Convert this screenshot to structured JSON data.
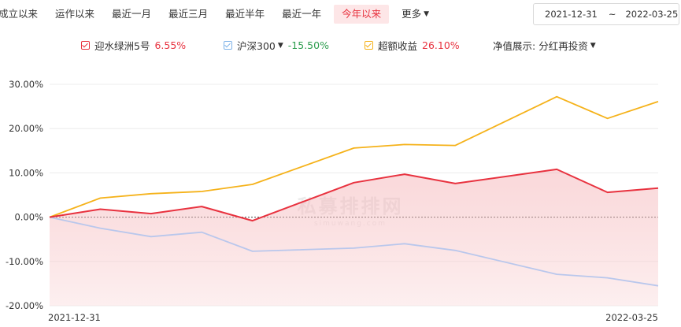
{
  "tabs": [
    {
      "label": "成立以来",
      "active": false
    },
    {
      "label": "运作以来",
      "active": false
    },
    {
      "label": "最近一月",
      "active": false
    },
    {
      "label": "最近三月",
      "active": false
    },
    {
      "label": "最近半年",
      "active": false
    },
    {
      "label": "最近一年",
      "active": false
    },
    {
      "label": "今年以来",
      "active": true
    },
    {
      "label": "更多",
      "active": false
    }
  ],
  "date_range": {
    "start": "2021-12-31",
    "sep": "~",
    "end": "2022-03-25"
  },
  "legend": [
    {
      "name": "迎水绿洲5号",
      "value": "6.55%",
      "color": "#e8323f",
      "value_color": "#e8323f",
      "dropdown": false
    },
    {
      "name": "沪深300",
      "value": "-15.50%",
      "color": "#7fb3e8",
      "value_color": "#2e9e4f",
      "dropdown": true
    },
    {
      "name": "超额收益",
      "value": "26.10%",
      "color": "#f5b21a",
      "value_color": "#e8323f",
      "dropdown": false
    }
  ],
  "nav_display": {
    "label": "净值展示:",
    "value": "分红再投资"
  },
  "watermark": {
    "main": "私募排排网",
    "sub": "simuwang.com"
  },
  "chart_data": {
    "type": "line",
    "x": [
      "2021-12-31",
      "2022-01-07",
      "2022-01-14",
      "2022-01-21",
      "2022-01-28",
      "2022-02-11",
      "2022-02-18",
      "2022-02-25",
      "2022-03-11",
      "2022-03-18",
      "2022-03-25"
    ],
    "x_tick_labels": [
      "2021-12-31",
      "2022-03-25"
    ],
    "y_ticks": [
      "30.00%",
      "20.00%",
      "10.00%",
      "0.00%",
      "-10.00%",
      "-20.00%"
    ],
    "ylim": [
      -20,
      30
    ],
    "series": [
      {
        "name": "迎水绿洲5号",
        "color": "#e8323f",
        "fill": true,
        "values": [
          0.0,
          1.8,
          0.8,
          2.4,
          -0.8,
          7.8,
          9.7,
          7.6,
          10.8,
          5.6,
          6.55
        ]
      },
      {
        "name": "沪深300",
        "color": "#b9c7ec",
        "fill": false,
        "values": [
          0.0,
          -2.5,
          -4.4,
          -3.4,
          -7.7,
          -7.0,
          -6.0,
          -7.5,
          -12.9,
          -13.7,
          -15.5
        ]
      },
      {
        "name": "超额收益",
        "color": "#f5b21a",
        "fill": false,
        "values": [
          0.0,
          4.3,
          5.3,
          5.8,
          7.4,
          15.6,
          16.4,
          16.2,
          27.2,
          22.3,
          26.1
        ]
      }
    ]
  }
}
